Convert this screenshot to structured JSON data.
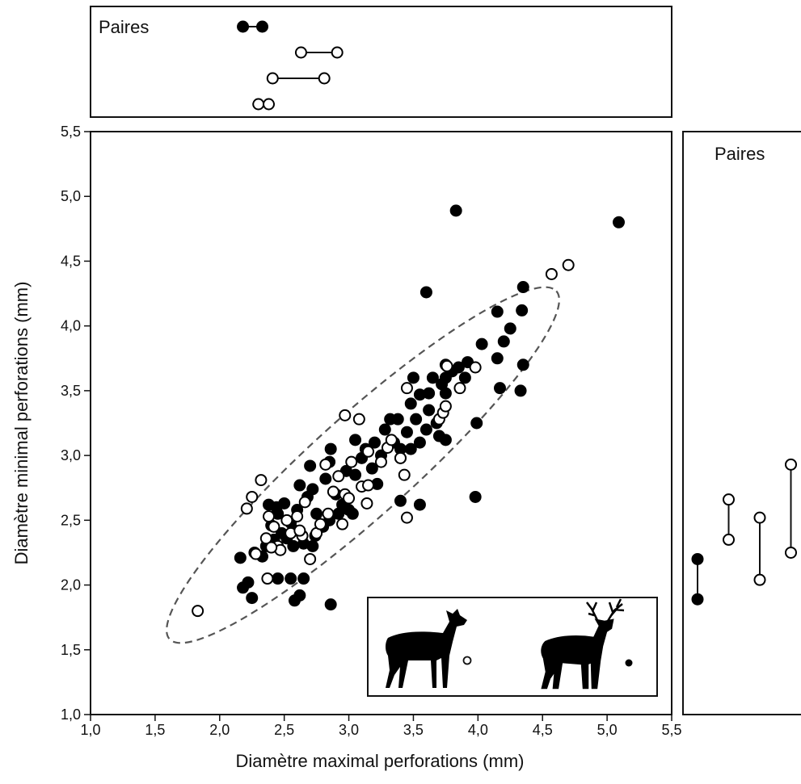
{
  "chart_data": [
    {
      "type": "scatter",
      "x_label": "Diamètre maximal perforations (mm)",
      "y_label": "Diamètre minimal perforations (mm)",
      "xlim": [
        1,
        5.5
      ],
      "ylim": [
        1,
        5.5
      ],
      "xticks": [
        {
          "value": 1,
          "label": "1,0"
        },
        {
          "value": 1.5,
          "label": "1,5"
        },
        {
          "value": 2,
          "label": "2,0"
        },
        {
          "value": 2.5,
          "label": "2,5"
        },
        {
          "value": 3,
          "label": "3,0"
        },
        {
          "value": 3.5,
          "label": "3,5"
        },
        {
          "value": 4,
          "label": "4,0"
        },
        {
          "value": 4.5,
          "label": "4,5"
        },
        {
          "value": 5,
          "label": "5,0"
        },
        {
          "value": 5.5,
          "label": "5,5"
        }
      ],
      "yticks": [
        {
          "value": 1,
          "label": "1,0"
        },
        {
          "value": 1.5,
          "label": "1,5"
        },
        {
          "value": 2,
          "label": "2,0"
        },
        {
          "value": 2.5,
          "label": "2,5"
        },
        {
          "value": 3,
          "label": "3,0"
        },
        {
          "value": 3.5,
          "label": "3,5"
        },
        {
          "value": 4,
          "label": "4,0"
        },
        {
          "value": 4.5,
          "label": "4,5"
        },
        {
          "value": 5,
          "label": "5,0"
        },
        {
          "value": 5.5,
          "label": "5,5"
        }
      ],
      "series": [
        {
          "color": "#000000",
          "marker": "filled",
          "x": [
            3.83,
            5.09,
            3.6,
            4.35,
            4.34,
            4.15,
            4.25,
            4.2,
            4.03,
            4.15,
            4.35,
            4.33,
            4.17,
            3.99,
            3.98,
            3.55,
            3.4,
            2.86,
            2.25,
            2.58,
            2.62,
            2.18,
            2.22,
            2.16,
            2.27,
            2.45,
            2.55,
            2.33,
            2.36,
            2.42,
            2.48,
            2.52,
            2.4,
            2.45,
            2.38,
            2.44,
            2.55,
            2.58,
            2.6,
            2.5,
            2.62,
            2.72,
            2.68,
            2.75,
            2.8,
            2.85,
            2.65,
            2.74,
            2.57,
            2.85,
            2.86,
            2.82,
            2.9,
            2.95,
            3.0,
            3.03,
            3.05,
            2.98,
            3.1,
            3.05,
            3.13,
            3.2,
            3.25,
            3.28,
            3.35,
            3.38,
            3.45,
            3.4,
            3.48,
            3.52,
            3.55,
            3.6,
            3.62,
            3.68,
            3.7,
            3.75,
            3.62,
            3.65,
            3.72,
            3.75,
            3.8,
            3.85,
            3.9,
            3.92,
            3.55,
            3.5,
            3.75,
            3.75,
            3.48,
            3.32,
            3.4,
            3.22,
            3.18,
            2.92,
            2.7,
            2.72,
            2.65
          ],
          "y": [
            4.89,
            4.8,
            4.26,
            4.3,
            4.12,
            4.11,
            3.98,
            3.88,
            3.86,
            3.75,
            3.7,
            3.5,
            3.52,
            3.25,
            2.68,
            2.62,
            2.65,
            1.85,
            1.9,
            1.88,
            1.92,
            1.98,
            2.02,
            2.21,
            2.25,
            2.05,
            2.05,
            2.22,
            2.3,
            2.35,
            2.4,
            2.36,
            2.46,
            2.55,
            2.62,
            2.6,
            2.48,
            2.42,
            2.58,
            2.63,
            2.77,
            2.74,
            2.68,
            2.55,
            2.45,
            2.5,
            2.32,
            2.38,
            2.3,
            2.95,
            3.05,
            2.82,
            2.7,
            2.62,
            2.58,
            2.55,
            2.85,
            2.88,
            2.98,
            3.12,
            3.05,
            3.1,
            3.0,
            3.2,
            3.1,
            3.28,
            3.18,
            2.98,
            3.05,
            3.28,
            3.1,
            3.2,
            3.35,
            3.25,
            3.15,
            3.12,
            3.48,
            3.6,
            3.55,
            3.48,
            3.65,
            3.68,
            3.6,
            3.72,
            3.47,
            3.6,
            3.7,
            3.6,
            3.4,
            3.28,
            3.05,
            2.78,
            2.9,
            2.55,
            2.92,
            2.3,
            2.05
          ]
        },
        {
          "color": "#000000",
          "marker": "open",
          "x": [
            1.83,
            2.21,
            2.25,
            2.32,
            2.37,
            2.36,
            2.38,
            2.42,
            2.45,
            2.47,
            2.52,
            2.55,
            2.6,
            2.64,
            2.66,
            2.7,
            2.75,
            2.78,
            2.82,
            2.84,
            2.88,
            2.92,
            2.95,
            2.97,
            3.0,
            2.97,
            3.08,
            3.1,
            3.14,
            3.15,
            3.15,
            3.25,
            3.3,
            3.33,
            3.4,
            3.43,
            3.45,
            3.45,
            3.7,
            3.73,
            3.75,
            3.76,
            3.86,
            3.98,
            4.57,
            4.7,
            3.02,
            2.28,
            2.62,
            2.4
          ],
          "y": [
            1.8,
            2.59,
            2.68,
            2.81,
            2.05,
            2.36,
            2.53,
            2.45,
            2.3,
            2.27,
            2.5,
            2.4,
            2.53,
            2.38,
            2.64,
            2.2,
            2.4,
            2.47,
            2.93,
            2.55,
            2.72,
            2.84,
            2.47,
            2.7,
            2.67,
            3.31,
            3.28,
            2.76,
            2.63,
            2.77,
            3.03,
            2.95,
            3.06,
            3.12,
            2.98,
            2.85,
            2.52,
            3.52,
            3.28,
            3.33,
            3.38,
            3.69,
            3.52,
            3.68,
            4.4,
            4.47,
            2.95,
            2.24,
            2.42,
            2.29
          ]
        }
      ]
    },
    {
      "type": "dumbbell",
      "orientation": "horizontal",
      "title": "Paires",
      "xlim": [
        1,
        5.5
      ],
      "pairs": [
        {
          "marker": "filled",
          "values": [
            2.18,
            2.33
          ]
        },
        {
          "marker": "open",
          "values": [
            2.63,
            2.91
          ]
        },
        {
          "marker": "open",
          "values": [
            2.41,
            2.81
          ]
        },
        {
          "marker": "open",
          "values": [
            2.3,
            2.38
          ]
        }
      ]
    },
    {
      "type": "dumbbell",
      "orientation": "vertical",
      "title": "Paires",
      "ylim": [
        1,
        5.5
      ],
      "pairs": [
        {
          "marker": "filled",
          "values": [
            2.2,
            1.89
          ]
        },
        {
          "marker": "open",
          "values": [
            2.66,
            2.35
          ]
        },
        {
          "marker": "open",
          "values": [
            2.52,
            2.04
          ]
        },
        {
          "marker": "open",
          "values": [
            2.93,
            2.25
          ]
        }
      ]
    }
  ]
}
